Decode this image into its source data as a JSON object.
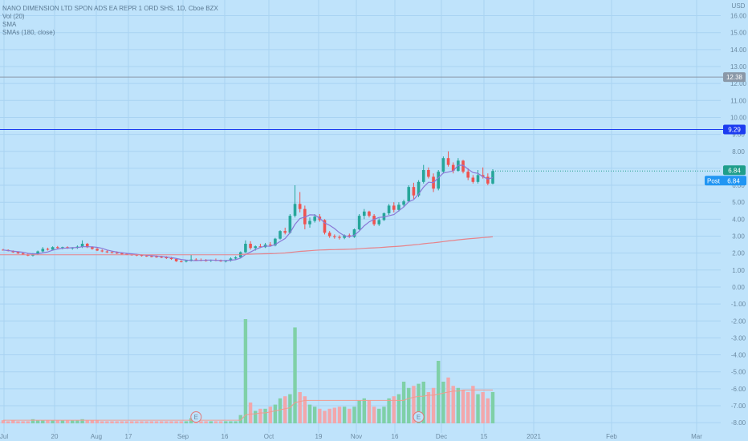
{
  "legend": {
    "title": "NANO DIMENSION LTD SPON ADS EA REPR 1 ORD SHS, 1D, Cboe BZX",
    "vol": "Vol (20)",
    "sma": "SMA",
    "smas": "SMAs (180, close)"
  },
  "colors": {
    "background": "#bfe3fb",
    "grid": "#a9d3f2",
    "up": "#26a69a",
    "down": "#ef5350",
    "up_volume": "#7fd0a7",
    "down_volume": "#f2a7ab",
    "sma_short": "#8a78d6",
    "sma_180": "#e7838a",
    "vol_ma": "#f29a8f",
    "hline_blue": "#1c3cf0",
    "hline_gray": "#8a98a8",
    "post_badge": "#2196f3",
    "price_badge": "#1f9e8b"
  },
  "chart_data": {
    "type": "candlestick",
    "title": "NANO DIMENSION LTD SPON ADS EA REPR 1 ORD SHS, 1D, Cboe BZX",
    "y_unit": "USD",
    "ylim": [
      -8.5,
      16.5
    ],
    "y_ticks": [
      16,
      15,
      14,
      13,
      12,
      11,
      10,
      9,
      8,
      7,
      6,
      5,
      4,
      3,
      2,
      1,
      0,
      -1,
      -2,
      -3,
      -4,
      -5,
      -6,
      -7,
      -8
    ],
    "x_ticks": [
      "Jul",
      "20",
      "Aug",
      "17",
      "Sep",
      "16",
      "Oct",
      "19",
      "Nov",
      "16",
      "Dec",
      "15",
      "2021",
      "Feb",
      "Mar"
    ],
    "horizontal_lines": [
      {
        "value": 12.38,
        "label": "12.38",
        "color": "#8a98a8"
      },
      {
        "value": 9.29,
        "label": "9.29",
        "color": "#1c3cf0"
      }
    ],
    "last_price": 6.84,
    "post_price": 6.84,
    "post_label": "Post",
    "earnings_markers": [
      "E",
      "E"
    ],
    "candles": [
      {
        "o": 2.2,
        "h": 2.25,
        "l": 2.15,
        "c": 2.18
      },
      {
        "o": 2.18,
        "h": 2.22,
        "l": 2.1,
        "c": 2.12
      },
      {
        "o": 2.12,
        "h": 2.16,
        "l": 2.02,
        "c": 2.05
      },
      {
        "o": 2.05,
        "h": 2.1,
        "l": 1.95,
        "c": 1.98
      },
      {
        "o": 1.98,
        "h": 2.05,
        "l": 1.9,
        "c": 1.92
      },
      {
        "o": 1.92,
        "h": 1.96,
        "l": 1.82,
        "c": 1.85
      },
      {
        "o": 1.85,
        "h": 2.0,
        "l": 1.8,
        "c": 1.95
      },
      {
        "o": 1.95,
        "h": 2.15,
        "l": 1.9,
        "c": 2.1
      },
      {
        "o": 2.1,
        "h": 2.35,
        "l": 2.05,
        "c": 2.25
      },
      {
        "o": 2.25,
        "h": 2.32,
        "l": 2.15,
        "c": 2.2
      },
      {
        "o": 2.2,
        "h": 2.4,
        "l": 2.15,
        "c": 2.35
      },
      {
        "o": 2.35,
        "h": 2.42,
        "l": 2.25,
        "c": 2.3
      },
      {
        "o": 2.3,
        "h": 2.38,
        "l": 2.22,
        "c": 2.35
      },
      {
        "o": 2.35,
        "h": 2.4,
        "l": 2.25,
        "c": 2.28
      },
      {
        "o": 2.28,
        "h": 2.35,
        "l": 2.2,
        "c": 2.32
      },
      {
        "o": 2.32,
        "h": 2.45,
        "l": 2.25,
        "c": 2.38
      },
      {
        "o": 2.38,
        "h": 2.75,
        "l": 2.3,
        "c": 2.55
      },
      {
        "o": 2.55,
        "h": 2.6,
        "l": 2.3,
        "c": 2.35
      },
      {
        "o": 2.35,
        "h": 2.4,
        "l": 2.2,
        "c": 2.25
      },
      {
        "o": 2.25,
        "h": 2.3,
        "l": 2.12,
        "c": 2.15
      },
      {
        "o": 2.15,
        "h": 2.22,
        "l": 2.05,
        "c": 2.1
      },
      {
        "o": 2.1,
        "h": 2.18,
        "l": 2.0,
        "c": 2.05
      },
      {
        "o": 2.05,
        "h": 2.12,
        "l": 1.98,
        "c": 2.02
      },
      {
        "o": 2.02,
        "h": 2.1,
        "l": 1.95,
        "c": 1.98
      },
      {
        "o": 1.98,
        "h": 2.05,
        "l": 1.9,
        "c": 1.95
      },
      {
        "o": 1.95,
        "h": 2.0,
        "l": 1.88,
        "c": 1.92
      },
      {
        "o": 1.92,
        "h": 1.98,
        "l": 1.85,
        "c": 1.9
      },
      {
        "o": 1.9,
        "h": 1.95,
        "l": 1.82,
        "c": 1.88
      },
      {
        "o": 1.88,
        "h": 1.92,
        "l": 1.8,
        "c": 1.85
      },
      {
        "o": 1.85,
        "h": 1.9,
        "l": 1.78,
        "c": 1.82
      },
      {
        "o": 1.82,
        "h": 1.88,
        "l": 1.75,
        "c": 1.8
      },
      {
        "o": 1.8,
        "h": 1.86,
        "l": 1.72,
        "c": 1.78
      },
      {
        "o": 1.78,
        "h": 1.84,
        "l": 1.7,
        "c": 1.76
      },
      {
        "o": 1.76,
        "h": 1.82,
        "l": 1.65,
        "c": 1.7
      },
      {
        "o": 1.7,
        "h": 1.78,
        "l": 1.6,
        "c": 1.65
      },
      {
        "o": 1.65,
        "h": 1.7,
        "l": 1.48,
        "c": 1.52
      },
      {
        "o": 1.52,
        "h": 1.58,
        "l": 1.45,
        "c": 1.5
      },
      {
        "o": 1.5,
        "h": 1.6,
        "l": 1.45,
        "c": 1.55
      },
      {
        "o": 1.55,
        "h": 1.9,
        "l": 1.5,
        "c": 1.62
      },
      {
        "o": 1.62,
        "h": 1.7,
        "l": 1.55,
        "c": 1.6
      },
      {
        "o": 1.6,
        "h": 1.68,
        "l": 1.52,
        "c": 1.58
      },
      {
        "o": 1.58,
        "h": 1.65,
        "l": 1.5,
        "c": 1.55
      },
      {
        "o": 1.55,
        "h": 1.62,
        "l": 1.48,
        "c": 1.6
      },
      {
        "o": 1.6,
        "h": 1.68,
        "l": 1.52,
        "c": 1.56
      },
      {
        "o": 1.56,
        "h": 1.62,
        "l": 1.48,
        "c": 1.52
      },
      {
        "o": 1.52,
        "h": 1.58,
        "l": 1.45,
        "c": 1.55
      },
      {
        "o": 1.55,
        "h": 1.75,
        "l": 1.5,
        "c": 1.68
      },
      {
        "o": 1.68,
        "h": 1.82,
        "l": 1.6,
        "c": 1.75
      },
      {
        "o": 1.75,
        "h": 2.1,
        "l": 1.7,
        "c": 2.05
      },
      {
        "o": 2.05,
        "h": 2.75,
        "l": 2.0,
        "c": 2.55
      },
      {
        "o": 2.55,
        "h": 2.7,
        "l": 2.2,
        "c": 2.3
      },
      {
        "o": 2.3,
        "h": 2.45,
        "l": 2.15,
        "c": 2.4
      },
      {
        "o": 2.4,
        "h": 2.55,
        "l": 2.3,
        "c": 2.35
      },
      {
        "o": 2.35,
        "h": 2.6,
        "l": 2.3,
        "c": 2.5
      },
      {
        "o": 2.5,
        "h": 2.65,
        "l": 2.4,
        "c": 2.45
      },
      {
        "o": 2.45,
        "h": 2.9,
        "l": 2.4,
        "c": 2.85
      },
      {
        "o": 2.85,
        "h": 3.35,
        "l": 2.8,
        "c": 3.3
      },
      {
        "o": 3.3,
        "h": 3.5,
        "l": 3.1,
        "c": 3.2
      },
      {
        "o": 3.2,
        "h": 4.3,
        "l": 3.15,
        "c": 4.2
      },
      {
        "o": 4.2,
        "h": 6.0,
        "l": 4.1,
        "c": 4.9
      },
      {
        "o": 4.9,
        "h": 5.6,
        "l": 4.4,
        "c": 4.6
      },
      {
        "o": 4.6,
        "h": 4.8,
        "l": 3.4,
        "c": 3.7
      },
      {
        "o": 3.7,
        "h": 4.1,
        "l": 3.5,
        "c": 3.9
      },
      {
        "o": 3.9,
        "h": 4.3,
        "l": 3.8,
        "c": 4.15
      },
      {
        "o": 4.15,
        "h": 4.3,
        "l": 3.85,
        "c": 3.95
      },
      {
        "o": 3.95,
        "h": 4.0,
        "l": 3.1,
        "c": 3.2
      },
      {
        "o": 3.2,
        "h": 3.3,
        "l": 2.9,
        "c": 3.0
      },
      {
        "o": 3.0,
        "h": 3.1,
        "l": 2.85,
        "c": 2.95
      },
      {
        "o": 2.95,
        "h": 3.05,
        "l": 2.8,
        "c": 2.9
      },
      {
        "o": 2.9,
        "h": 3.1,
        "l": 2.82,
        "c": 3.05
      },
      {
        "o": 3.05,
        "h": 3.15,
        "l": 2.9,
        "c": 2.95
      },
      {
        "o": 2.95,
        "h": 3.45,
        "l": 2.9,
        "c": 3.4
      },
      {
        "o": 3.4,
        "h": 4.3,
        "l": 3.35,
        "c": 4.2
      },
      {
        "o": 4.2,
        "h": 4.6,
        "l": 4.0,
        "c": 4.45
      },
      {
        "o": 4.45,
        "h": 4.5,
        "l": 4.1,
        "c": 4.2
      },
      {
        "o": 4.2,
        "h": 4.3,
        "l": 3.6,
        "c": 3.7
      },
      {
        "o": 3.7,
        "h": 4.05,
        "l": 3.6,
        "c": 3.95
      },
      {
        "o": 3.95,
        "h": 4.4,
        "l": 3.9,
        "c": 4.35
      },
      {
        "o": 4.35,
        "h": 4.9,
        "l": 4.25,
        "c": 4.8
      },
      {
        "o": 4.8,
        "h": 5.0,
        "l": 4.4,
        "c": 4.55
      },
      {
        "o": 4.55,
        "h": 5.0,
        "l": 4.45,
        "c": 4.85
      },
      {
        "o": 4.85,
        "h": 5.15,
        "l": 4.7,
        "c": 5.05
      },
      {
        "o": 5.05,
        "h": 6.0,
        "l": 5.0,
        "c": 5.9
      },
      {
        "o": 5.9,
        "h": 6.15,
        "l": 5.2,
        "c": 5.4
      },
      {
        "o": 5.4,
        "h": 6.3,
        "l": 5.3,
        "c": 6.2
      },
      {
        "o": 6.2,
        "h": 7.2,
        "l": 6.1,
        "c": 6.9
      },
      {
        "o": 6.9,
        "h": 7.05,
        "l": 6.4,
        "c": 6.5
      },
      {
        "o": 6.5,
        "h": 6.7,
        "l": 5.6,
        "c": 5.8
      },
      {
        "o": 5.8,
        "h": 6.9,
        "l": 5.7,
        "c": 6.8
      },
      {
        "o": 6.8,
        "h": 7.7,
        "l": 6.7,
        "c": 7.6
      },
      {
        "o": 7.6,
        "h": 8.0,
        "l": 7.1,
        "c": 7.2
      },
      {
        "o": 7.2,
        "h": 7.35,
        "l": 6.7,
        "c": 6.85
      },
      {
        "o": 6.85,
        "h": 7.6,
        "l": 6.8,
        "c": 7.45
      },
      {
        "o": 7.45,
        "h": 7.5,
        "l": 6.7,
        "c": 6.8
      },
      {
        "o": 6.8,
        "h": 7.0,
        "l": 6.3,
        "c": 6.45
      },
      {
        "o": 6.45,
        "h": 6.6,
        "l": 6.1,
        "c": 6.2
      },
      {
        "o": 6.2,
        "h": 6.9,
        "l": 6.1,
        "c": 6.6
      },
      {
        "o": 6.6,
        "h": 7.05,
        "l": 6.4,
        "c": 6.5
      },
      {
        "o": 6.5,
        "h": 6.7,
        "l": 6.0,
        "c": 6.1
      },
      {
        "o": 6.1,
        "h": 6.95,
        "l": 6.05,
        "c": 6.84
      }
    ],
    "volume": [
      3,
      2,
      3,
      2,
      2,
      2,
      4,
      3,
      3,
      3,
      3,
      3,
      3,
      3,
      3,
      3,
      4,
      3,
      3,
      3,
      2,
      2,
      2,
      2,
      2,
      2,
      2,
      2,
      2,
      2,
      2,
      2,
      2,
      2,
      2,
      2,
      2,
      2,
      5,
      2,
      2,
      2,
      2,
      2,
      2,
      2,
      2,
      2,
      8,
      100,
      20,
      12,
      14,
      14,
      16,
      18,
      24,
      26,
      28,
      92,
      30,
      26,
      18,
      16,
      14,
      12,
      14,
      15,
      16,
      16,
      14,
      16,
      22,
      24,
      22,
      16,
      14,
      16,
      24,
      26,
      28,
      40,
      34,
      36,
      38,
      40,
      30,
      34,
      60,
      40,
      44,
      36,
      34,
      32,
      30,
      36,
      28,
      30,
      24,
      30
    ],
    "vol_ma": [
      3,
      3,
      3,
      3,
      3,
      3,
      3,
      3,
      3,
      3,
      3,
      3,
      3,
      3,
      3,
      3,
      3,
      3,
      3,
      3,
      3,
      3,
      3,
      3,
      3,
      3,
      3,
      3,
      3,
      3,
      3,
      3,
      3,
      3,
      3,
      3,
      3,
      3,
      3,
      3,
      3,
      3,
      3,
      3,
      3,
      3,
      3,
      3,
      3,
      8,
      9,
      9,
      10,
      10,
      11,
      12,
      13,
      14,
      15,
      20,
      21,
      22,
      22,
      22,
      22,
      22,
      22,
      22,
      22,
      22,
      22,
      22,
      22,
      22,
      22,
      22,
      22,
      22,
      22,
      22,
      22,
      22,
      24,
      25,
      26,
      26,
      27,
      27,
      28,
      29,
      30,
      31,
      31,
      32,
      32,
      32,
      32,
      32,
      32,
      32
    ],
    "sma_180_start_index": 48
  }
}
